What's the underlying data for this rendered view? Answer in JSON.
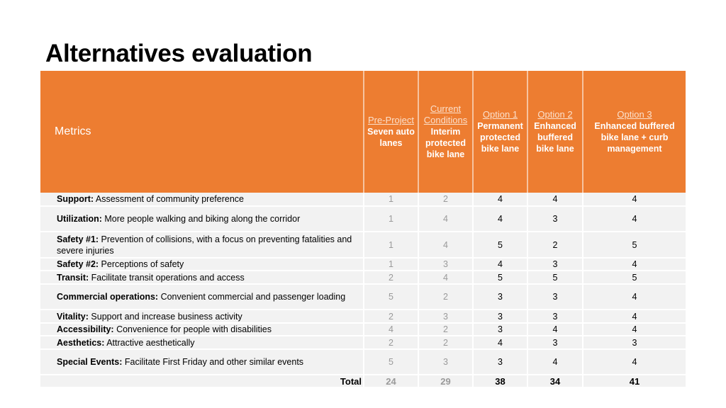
{
  "title": "Alternatives evaluation",
  "header": {
    "metrics": "Metrics",
    "columns": [
      {
        "option": "Pre-Project",
        "desc": "Seven auto lanes"
      },
      {
        "option": "Current Conditions",
        "desc": "Interim protected bike lane"
      },
      {
        "option": "Option 1",
        "desc": "Permanent protected bike lane"
      },
      {
        "option": "Option 2",
        "desc": "Enhanced buffered bike lane"
      },
      {
        "option": "Option 3",
        "desc": "Enhanced buffered bike lane + curb management"
      }
    ]
  },
  "rows": [
    {
      "name": "Support:",
      "desc": "Assessment of community preference",
      "scores": [
        "1",
        "2",
        "4",
        "4",
        "4"
      ]
    },
    {
      "name": "Utilization:",
      "desc": "More people walking and biking along the corridor",
      "scores": [
        "1",
        "4",
        "4",
        "3",
        "4"
      ]
    },
    {
      "name": "Safety #1:",
      "desc": "Prevention of collisions, with a focus on preventing fatalities and severe injuries",
      "scores": [
        "1",
        "4",
        "5",
        "2",
        "5"
      ]
    },
    {
      "name": "Safety #2:",
      "desc": "Perceptions of safety",
      "scores": [
        "1",
        "3",
        "4",
        "3",
        "4"
      ]
    },
    {
      "name": "Transit:",
      "desc": "Facilitate transit operations and access",
      "scores": [
        "2",
        "4",
        "5",
        "5",
        "5"
      ]
    },
    {
      "name": "Commercial operations:",
      "desc": "Convenient commercial and passenger loading",
      "scores": [
        "5",
        "2",
        "3",
        "3",
        "4"
      ]
    },
    {
      "name": "Vitality:",
      "desc": "Support and increase business activity",
      "scores": [
        "2",
        "3",
        "3",
        "3",
        "4"
      ]
    },
    {
      "name": "Accessibility:",
      "desc": "Convenience for people with disabilities",
      "scores": [
        "4",
        "2",
        "3",
        "4",
        "4"
      ]
    },
    {
      "name": "Aesthetics:",
      "desc": "Attractive aesthetically",
      "scores": [
        "2",
        "2",
        "4",
        "3",
        "3"
      ]
    },
    {
      "name": "Special Events:",
      "desc": "Facilitate First Friday and other similar events",
      "scores": [
        "5",
        "3",
        "3",
        "4",
        "4"
      ]
    }
  ],
  "total": {
    "label": "Total",
    "values": [
      "24",
      "29",
      "38",
      "34",
      "41"
    ]
  }
}
